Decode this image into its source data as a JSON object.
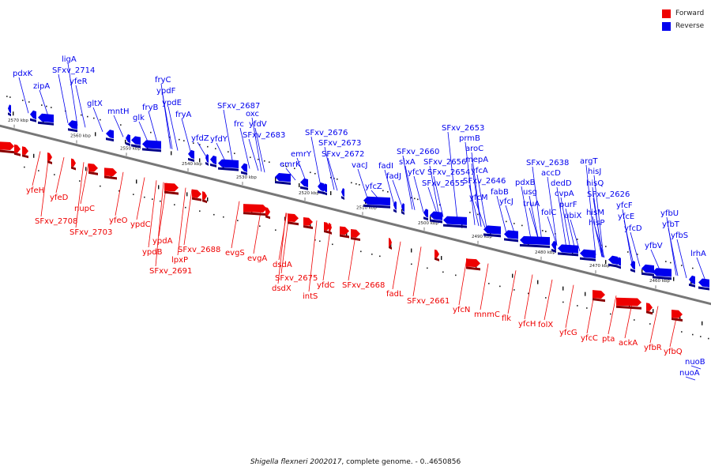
{
  "legend": [
    {
      "label": "Forward",
      "color": "#ee0000"
    },
    {
      "label": "Reverse",
      "color": "#0000ee"
    }
  ],
  "caption": {
    "organism": "Shigella flexneri 2002017",
    "rest": ", complete genome. - 0..4650856"
  },
  "colors": {
    "forward": "#ee0000",
    "reverse": "#0000ee",
    "backbone": "#777777"
  },
  "ticks": [
    "2570 kbp",
    "2560 kbp",
    "2550 kbp",
    "2540 kbp",
    "2530 kbp",
    "2520 kbp",
    "2510 kbp",
    "2500 kbp",
    "2490 kbp",
    "2480 kbp",
    "2470 kbp",
    "2460 kbp"
  ],
  "reverse_labels": [
    "pdxK",
    "zipA",
    "ligA",
    "SFxv_2714",
    "yfeR",
    "gltX",
    "mntH",
    "glk",
    "fryB",
    "fryC",
    "ypdF",
    "ypdE",
    "fryA",
    "yfdZ",
    "yfdY",
    "frc",
    "SFxv_2687",
    "oxc",
    "yfdV",
    "SFxv_2683",
    "emrK",
    "emrY",
    "SFxv_2676",
    "SFxv_2673",
    "SFxv_2672",
    "vacJ",
    "yfcZ",
    "fadJ",
    "fadI",
    "sixA",
    "SFxv_2660",
    "yfcV",
    "SFxv_2655",
    "SFxv_2656",
    "SFxv_2654",
    "SFxv_2653",
    "prmB",
    "aroC",
    "mepA",
    "yfcA",
    "yfcM",
    "SFxv_2646",
    "fabB",
    "yfcJ",
    "pdxB",
    "usg",
    "truA",
    "SFxv_2638",
    "accD",
    "dedD",
    "folC",
    "cvpA",
    "purF",
    "ubiX",
    "argT",
    "hisJ",
    "hisQ",
    "hisM",
    "hisP",
    "SFxv_2626",
    "yfcF",
    "yfcE",
    "yfcD",
    "yfbV",
    "yfbU",
    "yfbT",
    "yfbS",
    "lrhA",
    "nuoB",
    "nuoA"
  ],
  "forward_labels": [
    "yfeH",
    "yfeD",
    "SFxv_2708",
    "nupC",
    "SFxv_2703",
    "yfeO",
    "ypdC",
    "ypdA",
    "ypdB",
    "SFxv_2688",
    "lpxP",
    "SFxv_2691",
    "evgS",
    "evgA",
    "dsdA",
    "SFxv_2675",
    "dsdX",
    "yfdC",
    "intS",
    "SFxv_2668",
    "fadL",
    "SFxv_2661",
    "yfcN",
    "mnmC",
    "flk",
    "folX",
    "yfcH",
    "yfcG",
    "yfcC",
    "pta",
    "ackA",
    "yfbR",
    "yfbQ"
  ]
}
